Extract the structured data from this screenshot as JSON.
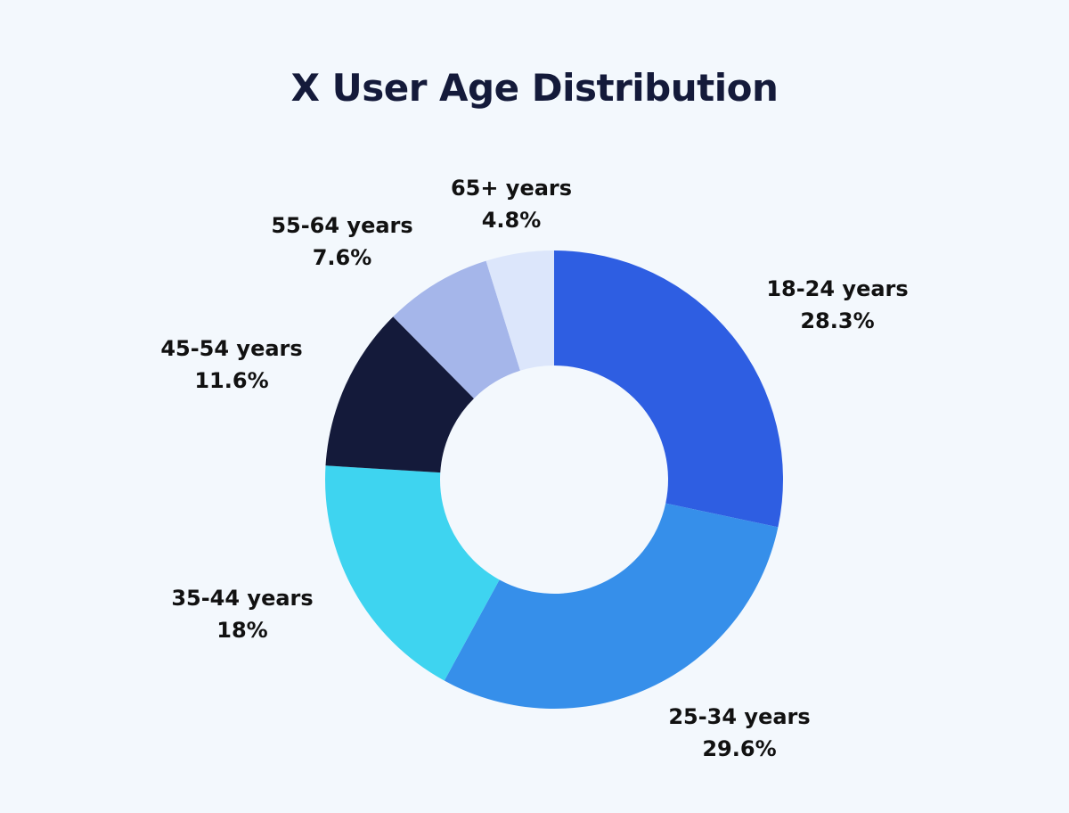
{
  "chart_data": {
    "type": "pie",
    "style": "donut",
    "title": "X User Age Distribution",
    "categories": [
      "18-24 years",
      "25-34 years",
      "35-44 years",
      "45-54 years",
      "55-64 years",
      "65+ years"
    ],
    "values": [
      28.3,
      29.6,
      18,
      11.6,
      7.6,
      4.8
    ],
    "value_labels": [
      "28.3%",
      "29.6%",
      "18%",
      "11.6%",
      "7.6%",
      "4.8%"
    ],
    "unit": "%",
    "start_angle": "top (12 o'clock)",
    "direction": "clockwise",
    "legend": "none",
    "colors": [
      "#2e5ee2",
      "#368fea",
      "#3ed4f0",
      "#141a3a",
      "#a5b6ea",
      "#dce6fb"
    ]
  },
  "colors": {
    "background": "#f3f8fd",
    "title": "#141a3a",
    "label_text": "#111111"
  }
}
